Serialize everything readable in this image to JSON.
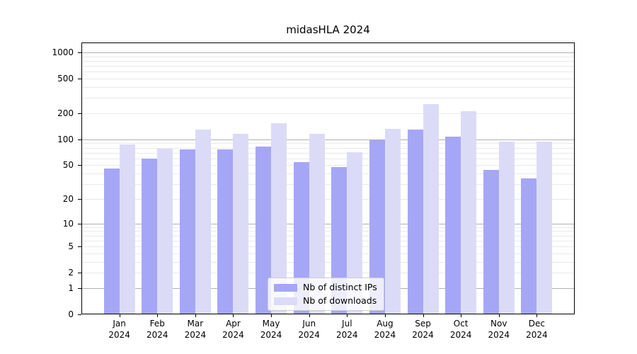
{
  "title": "midasHLA 2024",
  "legend": {
    "position": "lower center",
    "items": [
      {
        "label": "Nb of distinct IPs",
        "series_key": "distinct_ips"
      },
      {
        "label": "Nb of downloads",
        "series_key": "downloads"
      }
    ]
  },
  "colors": {
    "distinct_ips": "#a6a6f6",
    "downloads": "#dbdbf8",
    "grid_major": "#b0b0b0",
    "grid_minor": "#e9e9e9",
    "axis": "#000000",
    "background": "#ffffff"
  },
  "chart_data": {
    "type": "bar",
    "title": "midasHLA 2024",
    "categories": [
      "Jan",
      "Feb",
      "Mar",
      "Apr",
      "May",
      "Jun",
      "Jul",
      "Aug",
      "Sep",
      "Oct",
      "Nov",
      "Dec"
    ],
    "category_year": "2024",
    "series": [
      {
        "name": "Nb of distinct IPs",
        "color": "#a6a6f6",
        "values": [
          46,
          60,
          77,
          76,
          83,
          54,
          48,
          98,
          130,
          108,
          44,
          35
        ]
      },
      {
        "name": "Nb of downloads",
        "color": "#dbdbf8",
        "values": [
          87,
          78,
          129,
          117,
          154,
          116,
          71,
          132,
          256,
          213,
          94,
          95
        ]
      }
    ],
    "xlabel": "",
    "ylabel": "",
    "yscale": "log-like (log10 of 1+x, linear near 0)",
    "ytick_labels": [
      "0",
      "1",
      "2",
      "5",
      "10",
      "20",
      "50",
      "100",
      "200",
      "500",
      "1000"
    ],
    "ylim": [
      0,
      1300
    ],
    "grid": true,
    "legend_position": "lower center"
  }
}
